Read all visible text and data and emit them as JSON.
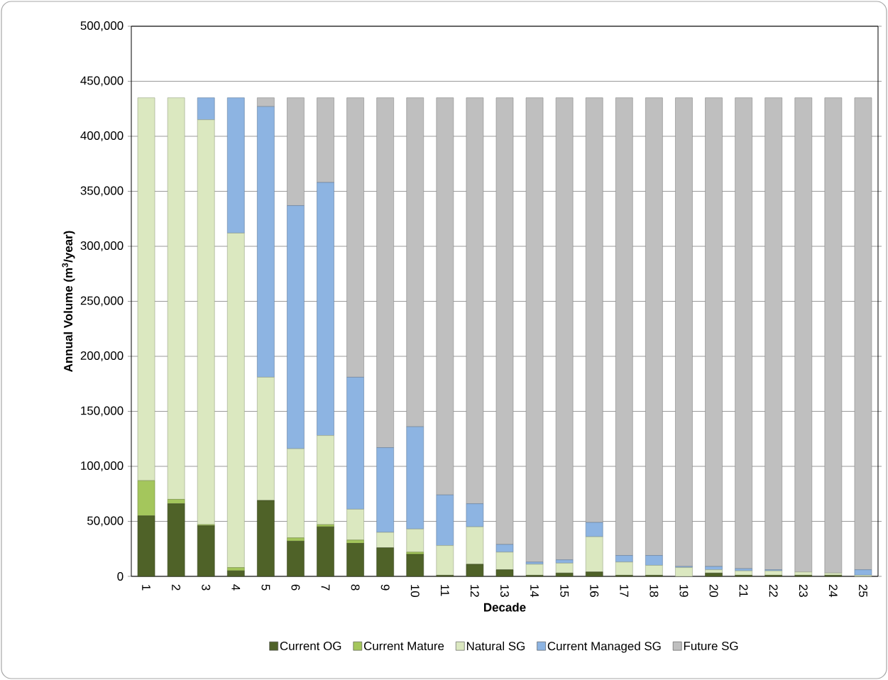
{
  "chart_data": {
    "type": "bar",
    "stacked": true,
    "xlabel": "Decade",
    "ylabel": "Annual Volume (m$^{3}$/year)",
    "categories": [
      "1",
      "2",
      "3",
      "4",
      "5",
      "6",
      "7",
      "8",
      "9",
      "10",
      "11",
      "12",
      "13",
      "14",
      "15",
      "16",
      "17",
      "18",
      "19",
      "20",
      "21",
      "22",
      "23",
      "24",
      "25"
    ],
    "series": [
      {
        "name": "Current OG",
        "color": "#4f6228",
        "values": [
          55000,
          66000,
          46000,
          5000,
          69000,
          32000,
          45000,
          30000,
          26000,
          20000,
          1000,
          11000,
          6000,
          1000,
          3000,
          4000,
          1000,
          1000,
          0,
          3000,
          1000,
          1000,
          1000,
          1000,
          0
        ]
      },
      {
        "name": "Current Mature",
        "color": "#a4c65c",
        "values": [
          32000,
          4000,
          1000,
          3000,
          null,
          3000,
          2000,
          3000,
          0,
          2000,
          0,
          null,
          0,
          0,
          0,
          0,
          0,
          0,
          0,
          0,
          0,
          0,
          0,
          0,
          0
        ]
      },
      {
        "name": "Natural SG",
        "color": "#dbe8c0",
        "values": [
          348000,
          365000,
          368000,
          304000,
          112000,
          81000,
          81000,
          28000,
          14000,
          21000,
          27000,
          34000,
          16000,
          10000,
          9000,
          32000,
          12000,
          9000,
          8000,
          3000,
          4000,
          4000,
          3000,
          2000,
          1000
        ]
      },
      {
        "name": "Current Managed SG",
        "color": "#8db4e2",
        "values": [
          0,
          0,
          20000,
          123000,
          246000,
          221000,
          230000,
          120000,
          77000,
          93000,
          46000,
          21000,
          7000,
          2000,
          3000,
          13000,
          6000,
          9000,
          1000,
          3000,
          2000,
          1000,
          null,
          0,
          5000
        ]
      },
      {
        "name": "Future SG",
        "color": "#bfbfbf",
        "values": [
          0,
          0,
          0,
          0,
          8000,
          98000,
          77000,
          254000,
          318000,
          299000,
          361000,
          369000,
          406000,
          422000,
          420000,
          386000,
          416000,
          416000,
          426000,
          426000,
          428000,
          429000,
          431000,
          432000,
          429000
        ]
      }
    ],
    "ylim": [
      0,
      500000
    ],
    "yticks": [
      0,
      {
        "value": 50000,
        "label": "50,000"
      },
      {
        "value": 100000,
        "label": "100,000"
      },
      {
        "value": 150000,
        "label": "150,000"
      },
      {
        "value": 200000,
        "label": "200,000"
      },
      {
        "value": 250000,
        "label": "250,000"
      },
      {
        "value": 300000,
        "label": "300,000"
      },
      {
        "value": 350000,
        "label": "350,000"
      },
      {
        "value": 400000,
        "label": "400,000"
      },
      {
        "value": 450000,
        "label": "450,000"
      },
      {
        "value": 500000,
        "label": "500,000"
      }
    ],
    "grid": "y",
    "legend": "bottom"
  }
}
